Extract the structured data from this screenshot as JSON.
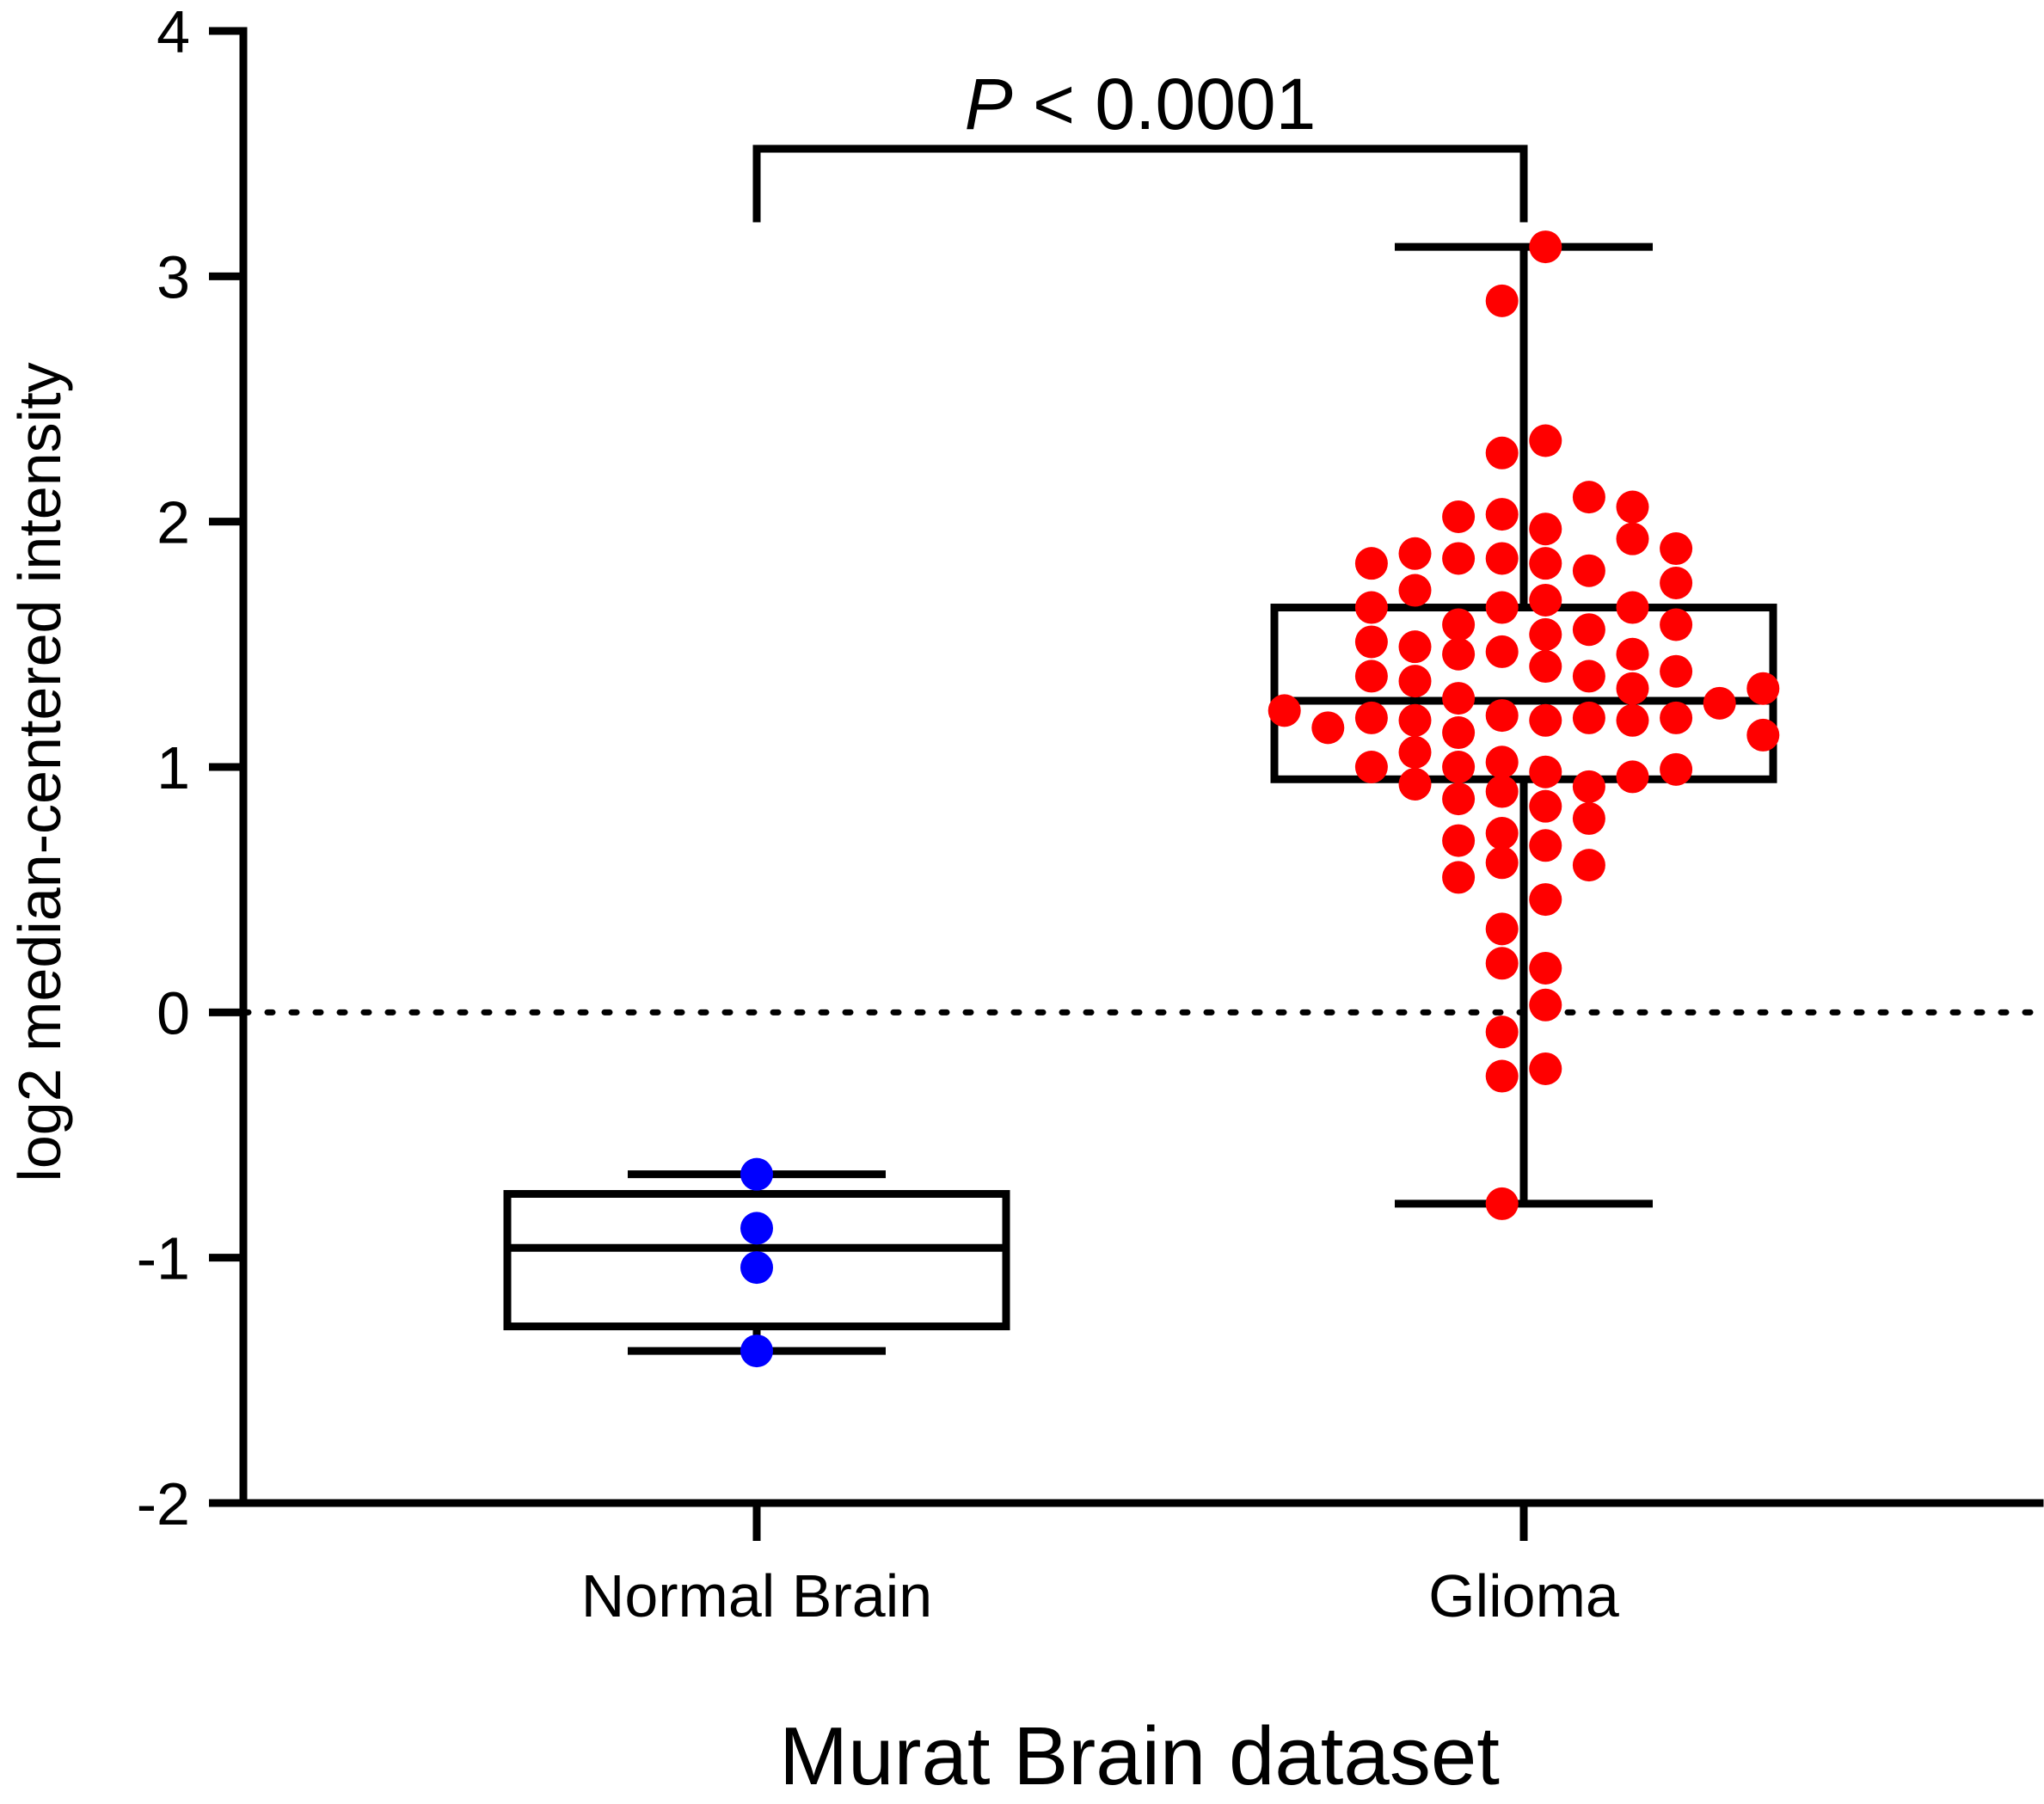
{
  "chart_data": {
    "type": "box-scatter",
    "title": "",
    "xlabel": "Murat Brain dataset",
    "ylabel": "log2 median-centered intensity",
    "ylim": [
      -2,
      4
    ],
    "yticks": [
      -2,
      -1,
      0,
      1,
      2,
      3,
      4
    ],
    "ytick_labels": [
      "-2",
      "-1",
      "0",
      "1",
      "2",
      "3",
      "4"
    ],
    "reference_line": {
      "y": 0,
      "style": "dotted"
    },
    "groups": [
      {
        "name": "Normal Brain",
        "color": "#0000ff",
        "box": {
          "min": -1.38,
          "q1": -1.28,
          "median": -0.96,
          "q3": -0.74,
          "max": -0.66
        },
        "points": [
          {
            "dx": 0,
            "y": -0.66
          },
          {
            "dx": 0,
            "y": -0.88
          },
          {
            "dx": 0,
            "y": -1.04
          },
          {
            "dx": 0,
            "y": -1.38
          }
        ]
      },
      {
        "name": "Glioma",
        "color": "#ff0000",
        "box": {
          "min": -0.78,
          "q1": 0.95,
          "median": 1.27,
          "q3": 1.65,
          "max": 3.12
        },
        "points": [
          {
            "dx": 1,
            "y": 3.12
          },
          {
            "dx": -1,
            "y": 2.9
          },
          {
            "dx": 1,
            "y": 2.33
          },
          {
            "dx": -1,
            "y": 2.28
          },
          {
            "dx": 3,
            "y": 2.1
          },
          {
            "dx": 5,
            "y": 2.06
          },
          {
            "dx": -1,
            "y": 2.03
          },
          {
            "dx": -3,
            "y": 2.02
          },
          {
            "dx": 1,
            "y": 1.97
          },
          {
            "dx": 5,
            "y": 1.93
          },
          {
            "dx": 7,
            "y": 1.89
          },
          {
            "dx": -5,
            "y": 1.87
          },
          {
            "dx": -3,
            "y": 1.85
          },
          {
            "dx": -1,
            "y": 1.85
          },
          {
            "dx": -7,
            "y": 1.83
          },
          {
            "dx": 1,
            "y": 1.83
          },
          {
            "dx": 3,
            "y": 1.8
          },
          {
            "dx": 7,
            "y": 1.75
          },
          {
            "dx": -5,
            "y": 1.72
          },
          {
            "dx": 1,
            "y": 1.68
          },
          {
            "dx": -7,
            "y": 1.65
          },
          {
            "dx": -1,
            "y": 1.65
          },
          {
            "dx": 5,
            "y": 1.65
          },
          {
            "dx": -3,
            "y": 1.58
          },
          {
            "dx": 7,
            "y": 1.58
          },
          {
            "dx": 3,
            "y": 1.56
          },
          {
            "dx": 1,
            "y": 1.54
          },
          {
            "dx": -7,
            "y": 1.51
          },
          {
            "dx": -5,
            "y": 1.49
          },
          {
            "dx": -1,
            "y": 1.47
          },
          {
            "dx": -3,
            "y": 1.46
          },
          {
            "dx": 5,
            "y": 1.46
          },
          {
            "dx": 1,
            "y": 1.41
          },
          {
            "dx": 7,
            "y": 1.39
          },
          {
            "dx": -7,
            "y": 1.37
          },
          {
            "dx": 3,
            "y": 1.37
          },
          {
            "dx": -5,
            "y": 1.35
          },
          {
            "dx": 11,
            "y": 1.32
          },
          {
            "dx": 5,
            "y": 1.32
          },
          {
            "dx": -3,
            "y": 1.28
          },
          {
            "dx": 9,
            "y": 1.26
          },
          {
            "dx": -11,
            "y": 1.23
          },
          {
            "dx": -1,
            "y": 1.21
          },
          {
            "dx": -7,
            "y": 1.2
          },
          {
            "dx": 3,
            "y": 1.2
          },
          {
            "dx": 7,
            "y": 1.2
          },
          {
            "dx": -5,
            "y": 1.19
          },
          {
            "dx": 1,
            "y": 1.19
          },
          {
            "dx": 5,
            "y": 1.19
          },
          {
            "dx": -9,
            "y": 1.16
          },
          {
            "dx": -3,
            "y": 1.14
          },
          {
            "dx": 11,
            "y": 1.13
          },
          {
            "dx": -5,
            "y": 1.06
          },
          {
            "dx": -1,
            "y": 1.02
          },
          {
            "dx": -7,
            "y": 1.0
          },
          {
            "dx": -3,
            "y": 1.0
          },
          {
            "dx": 7,
            "y": 0.99
          },
          {
            "dx": 1,
            "y": 0.98
          },
          {
            "dx": 5,
            "y": 0.96
          },
          {
            "dx": -5,
            "y": 0.93
          },
          {
            "dx": 3,
            "y": 0.92
          },
          {
            "dx": -1,
            "y": 0.9
          },
          {
            "dx": -3,
            "y": 0.87
          },
          {
            "dx": 1,
            "y": 0.84
          },
          {
            "dx": 3,
            "y": 0.79
          },
          {
            "dx": -1,
            "y": 0.73
          },
          {
            "dx": -3,
            "y": 0.7
          },
          {
            "dx": 1,
            "y": 0.68
          },
          {
            "dx": -1,
            "y": 0.61
          },
          {
            "dx": 3,
            "y": 0.6
          },
          {
            "dx": -3,
            "y": 0.55
          },
          {
            "dx": 1,
            "y": 0.46
          },
          {
            "dx": -1,
            "y": 0.34
          },
          {
            "dx": -1,
            "y": 0.2
          },
          {
            "dx": 1,
            "y": 0.18
          },
          {
            "dx": 1,
            "y": 0.03
          },
          {
            "dx": -1,
            "y": -0.08
          },
          {
            "dx": 1,
            "y": -0.23
          },
          {
            "dx": -1,
            "y": -0.26
          },
          {
            "dx": -1,
            "y": -0.78
          }
        ]
      }
    ],
    "annotation": {
      "text_italic": "P",
      "text_rest": " < 0.0001",
      "bracket_y": 3.52,
      "bracket_leg_end_y": 3.22
    }
  }
}
